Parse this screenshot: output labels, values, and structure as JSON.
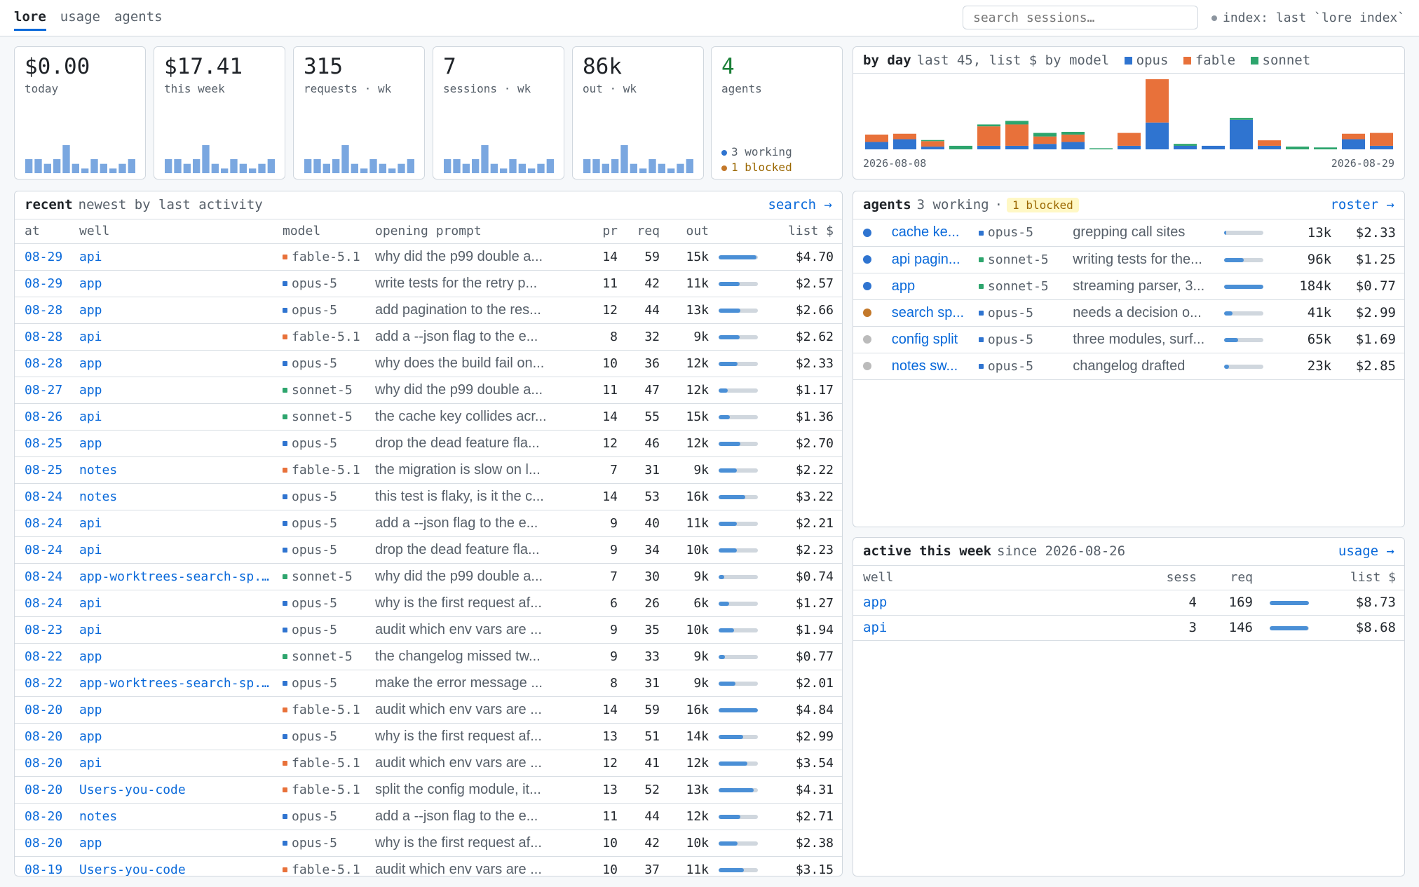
{
  "nav": {
    "tabs": [
      "lore",
      "usage",
      "agents"
    ]
  },
  "search": {
    "placeholder": "search sessions…"
  },
  "index_status": "index: last `lore index`",
  "colors": {
    "opus": "#2f74d0",
    "fable": "#e8713a",
    "sonnet": "#2da56d",
    "working": "#2f74d0",
    "blocked": "#c3782a",
    "idle": "#bbbbbb",
    "link": "#0969da"
  },
  "stats": [
    {
      "value": "$0.00",
      "label": "today",
      "spark": [
        3,
        3,
        2,
        3,
        6,
        2,
        1,
        3,
        2,
        1,
        2,
        3
      ]
    },
    {
      "value": "$17.41",
      "label": "this week",
      "spark": [
        3,
        3,
        2,
        3,
        6,
        2,
        1,
        3,
        2,
        1,
        2,
        3
      ]
    },
    {
      "value": "315",
      "label": "requests · wk",
      "spark": [
        3,
        3,
        2,
        3,
        6,
        2,
        1,
        3,
        2,
        1,
        2,
        3
      ]
    },
    {
      "value": "7",
      "label": "sessions · wk",
      "spark": [
        3,
        3,
        2,
        3,
        6,
        2,
        1,
        3,
        2,
        1,
        2,
        3
      ]
    },
    {
      "value": "86k",
      "label": "out · wk",
      "spark": [
        3,
        3,
        2,
        3,
        6,
        2,
        1,
        3,
        2,
        1,
        2,
        3
      ]
    }
  ],
  "agents_stat": {
    "value": "4",
    "label": "agents",
    "working": "3 working",
    "blocked": "1 blocked"
  },
  "by_day": {
    "title": "by day",
    "subtitle": "last 45, list $ by model",
    "legend": [
      "opus",
      "fable",
      "sonnet"
    ],
    "x_start": "2026-08-08",
    "x_end": "2026-08-29"
  },
  "chart_data": {
    "type": "bar",
    "stacked": true,
    "x_start": "2026-08-08",
    "x_end": "2026-08-29",
    "series": [
      {
        "name": "opus",
        "values": [
          2.7,
          3.7,
          1.0,
          0,
          1.3,
          1.3,
          2.0,
          2.7,
          0,
          1.3,
          9.8,
          1.3,
          1.3,
          10.8,
          1.3,
          0,
          0,
          3.7,
          1.3
        ]
      },
      {
        "name": "fable",
        "values": [
          2.7,
          2.0,
          2.0,
          0,
          7.1,
          7.8,
          2.7,
          2.7,
          0,
          4.7,
          15.8,
          0,
          0,
          0,
          2.0,
          0,
          0,
          2.0,
          4.7
        ]
      },
      {
        "name": "sonnet",
        "values": [
          0,
          0,
          0.4,
          1.3,
          0.7,
          1.3,
          1.3,
          1.0,
          0.4,
          0,
          0,
          0.7,
          0,
          0.7,
          0,
          1.0,
          0.7,
          0,
          0
        ]
      }
    ]
  },
  "recent": {
    "title": "recent",
    "subtitle": "newest by last activity",
    "link": "search →",
    "columns": [
      "at",
      "well",
      "model",
      "opening prompt",
      "pr",
      "req",
      "out",
      "list $"
    ],
    "rows": [
      {
        "at": "08-29",
        "well": "api",
        "model": "fable-5.1",
        "prompt": "why did the p99 double a...",
        "pr": "14",
        "req": "59",
        "out": "15k",
        "bar": 0.97,
        "cost": "$4.70"
      },
      {
        "at": "08-29",
        "well": "app",
        "model": "opus-5",
        "prompt": "write tests for the retry p...",
        "pr": "11",
        "req": "42",
        "out": "11k",
        "bar": 0.53,
        "cost": "$2.57"
      },
      {
        "at": "08-28",
        "well": "app",
        "model": "opus-5",
        "prompt": "add pagination to the res...",
        "pr": "12",
        "req": "44",
        "out": "13k",
        "bar": 0.55,
        "cost": "$2.66"
      },
      {
        "at": "08-28",
        "well": "api",
        "model": "fable-5.1",
        "prompt": "add a --json flag to the e...",
        "pr": "8",
        "req": "32",
        "out": "9k",
        "bar": 0.54,
        "cost": "$2.62"
      },
      {
        "at": "08-28",
        "well": "app",
        "model": "opus-5",
        "prompt": "why does the build fail on...",
        "pr": "10",
        "req": "36",
        "out": "12k",
        "bar": 0.48,
        "cost": "$2.33"
      },
      {
        "at": "08-27",
        "well": "app",
        "model": "sonnet-5",
        "prompt": "why did the p99 double a...",
        "pr": "11",
        "req": "47",
        "out": "12k",
        "bar": 0.24,
        "cost": "$1.17"
      },
      {
        "at": "08-26",
        "well": "api",
        "model": "sonnet-5",
        "prompt": "the cache key collides acr...",
        "pr": "14",
        "req": "55",
        "out": "15k",
        "bar": 0.28,
        "cost": "$1.36"
      },
      {
        "at": "08-25",
        "well": "app",
        "model": "opus-5",
        "prompt": "drop the dead feature fla...",
        "pr": "12",
        "req": "46",
        "out": "12k",
        "bar": 0.56,
        "cost": "$2.70"
      },
      {
        "at": "08-25",
        "well": "notes",
        "model": "fable-5.1",
        "prompt": "the migration is slow on l...",
        "pr": "7",
        "req": "31",
        "out": "9k",
        "bar": 0.46,
        "cost": "$2.22"
      },
      {
        "at": "08-24",
        "well": "notes",
        "model": "opus-5",
        "prompt": "this test is flaky, is it the c...",
        "pr": "14",
        "req": "53",
        "out": "16k",
        "bar": 0.67,
        "cost": "$3.22"
      },
      {
        "at": "08-24",
        "well": "api",
        "model": "opus-5",
        "prompt": "add a --json flag to the e...",
        "pr": "9",
        "req": "40",
        "out": "11k",
        "bar": 0.46,
        "cost": "$2.21"
      },
      {
        "at": "08-24",
        "well": "api",
        "model": "opus-5",
        "prompt": "drop the dead feature fla...",
        "pr": "9",
        "req": "34",
        "out": "10k",
        "bar": 0.46,
        "cost": "$2.23"
      },
      {
        "at": "08-24",
        "well": "app-worktrees-search-sp...",
        "model": "sonnet-5",
        "prompt": "why did the p99 double a...",
        "pr": "7",
        "req": "30",
        "out": "9k",
        "bar": 0.15,
        "cost": "$0.74"
      },
      {
        "at": "08-24",
        "well": "api",
        "model": "opus-5",
        "prompt": "why is the first request af...",
        "pr": "6",
        "req": "26",
        "out": "6k",
        "bar": 0.26,
        "cost": "$1.27"
      },
      {
        "at": "08-23",
        "well": "api",
        "model": "opus-5",
        "prompt": "audit which env vars are ...",
        "pr": "9",
        "req": "35",
        "out": "10k",
        "bar": 0.4,
        "cost": "$1.94"
      },
      {
        "at": "08-22",
        "well": "app",
        "model": "sonnet-5",
        "prompt": "the changelog missed tw...",
        "pr": "9",
        "req": "33",
        "out": "9k",
        "bar": 0.16,
        "cost": "$0.77"
      },
      {
        "at": "08-22",
        "well": "app-worktrees-search-sp...",
        "model": "opus-5",
        "prompt": "make the error message ...",
        "pr": "8",
        "req": "31",
        "out": "9k",
        "bar": 0.42,
        "cost": "$2.01"
      },
      {
        "at": "08-20",
        "well": "app",
        "model": "fable-5.1",
        "prompt": "audit which env vars are ...",
        "pr": "14",
        "req": "59",
        "out": "16k",
        "bar": 1.0,
        "cost": "$4.84"
      },
      {
        "at": "08-20",
        "well": "app",
        "model": "opus-5",
        "prompt": "why is the first request af...",
        "pr": "13",
        "req": "51",
        "out": "14k",
        "bar": 0.62,
        "cost": "$2.99"
      },
      {
        "at": "08-20",
        "well": "api",
        "model": "fable-5.1",
        "prompt": "audit which env vars are ...",
        "pr": "12",
        "req": "41",
        "out": "12k",
        "bar": 0.73,
        "cost": "$3.54"
      },
      {
        "at": "08-20",
        "well": "Users-you-code",
        "model": "fable-5.1",
        "prompt": "split the config module, it...",
        "pr": "13",
        "req": "52",
        "out": "13k",
        "bar": 0.89,
        "cost": "$4.31"
      },
      {
        "at": "08-20",
        "well": "notes",
        "model": "opus-5",
        "prompt": "add a --json flag to the e...",
        "pr": "11",
        "req": "44",
        "out": "12k",
        "bar": 0.56,
        "cost": "$2.71"
      },
      {
        "at": "08-20",
        "well": "app",
        "model": "opus-5",
        "prompt": "why is the first request af...",
        "pr": "10",
        "req": "42",
        "out": "10k",
        "bar": 0.49,
        "cost": "$2.38"
      },
      {
        "at": "08-19",
        "well": "Users-you-code",
        "model": "fable-5.1",
        "prompt": "audit which env vars are ...",
        "pr": "10",
        "req": "37",
        "out": "11k",
        "bar": 0.65,
        "cost": "$3.15"
      }
    ]
  },
  "agents_panel": {
    "title": "agents",
    "working": "3 working",
    "sep": "·",
    "blocked": "1 blocked",
    "link": "roster →",
    "rows": [
      {
        "status": "working",
        "name": "cache ke...",
        "model": "opus-5",
        "task": "grepping call sites",
        "bar": 0.06,
        "out": "13k",
        "cost": "$2.33"
      },
      {
        "status": "working",
        "name": "api pagin...",
        "model": "sonnet-5",
        "task": "writing tests for the...",
        "bar": 0.5,
        "out": "96k",
        "cost": "$1.25"
      },
      {
        "status": "working",
        "name": "app",
        "model": "sonnet-5",
        "task": "streaming parser, 3...",
        "bar": 1.0,
        "out": "184k",
        "cost": "$0.77"
      },
      {
        "status": "blocked",
        "name": "search sp...",
        "model": "opus-5",
        "task": "needs a decision o...",
        "bar": 0.22,
        "out": "41k",
        "cost": "$2.99"
      },
      {
        "status": "idle",
        "name": "config split",
        "model": "opus-5",
        "task": "three modules, surf...",
        "bar": 0.35,
        "out": "65k",
        "cost": "$1.69"
      },
      {
        "status": "idle",
        "name": "notes sw...",
        "model": "opus-5",
        "task": "changelog drafted",
        "bar": 0.12,
        "out": "23k",
        "cost": "$2.85"
      }
    ]
  },
  "active_week": {
    "title": "active this week",
    "subtitle": "since 2026-08-26",
    "link": "usage →",
    "columns": [
      "well",
      "sess",
      "req",
      "list $"
    ],
    "rows": [
      {
        "well": "app",
        "sess": "4",
        "req": "169",
        "bar": 1.0,
        "cost": "$8.73"
      },
      {
        "well": "api",
        "sess": "3",
        "req": "146",
        "bar": 0.99,
        "cost": "$8.68"
      }
    ]
  }
}
